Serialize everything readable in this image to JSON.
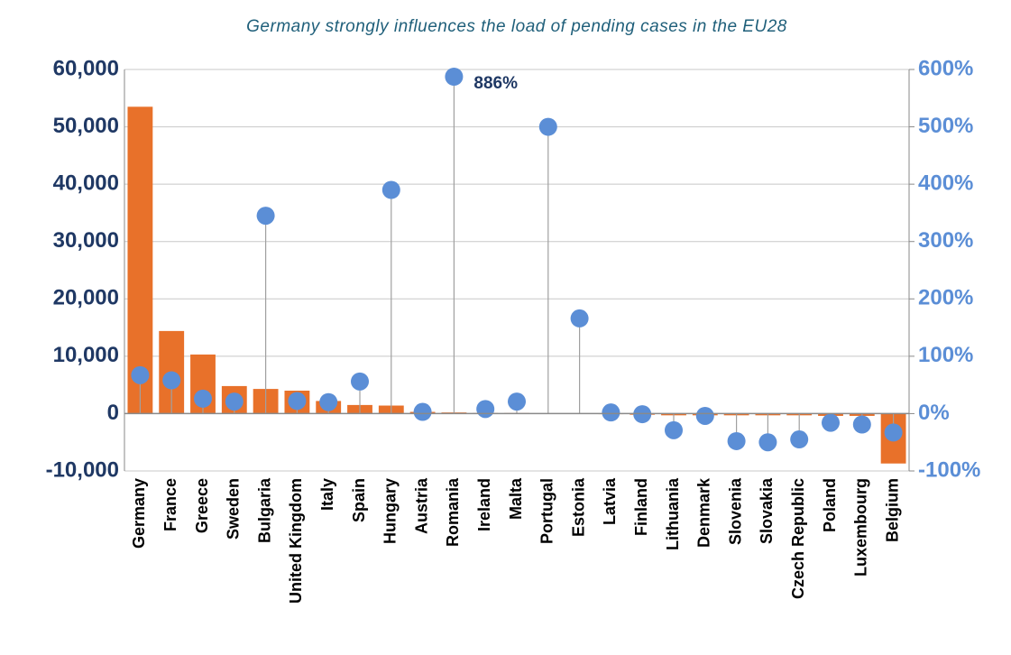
{
  "chart_data": {
    "type": "bar",
    "title": "Germany strongly influences the load of pending cases in the EU28",
    "categories": [
      "Germany",
      "France",
      "Greece",
      "Sweden",
      "Bulgaria",
      "United Kingdom",
      "Italy",
      "Spain",
      "Hungary",
      "Austria",
      "Romania",
      "Ireland",
      "Malta",
      "Portugal",
      "Estonia",
      "Latvia",
      "Finland",
      "Lithuania",
      "Denmark",
      "Slovenia",
      "Slovakia",
      "Czech Republic",
      "Poland",
      "Luxembourg",
      "Belgium"
    ],
    "series": [
      {
        "type": "bar",
        "color": "#e8712a",
        "values": [
          53500,
          14400,
          10300,
          4800,
          4300,
          4000,
          2200,
          1500,
          1400,
          300,
          200,
          100,
          100,
          0,
          0,
          -100,
          -200,
          -300,
          -300,
          -300,
          -300,
          -300,
          -400,
          -400,
          -8700
        ]
      },
      {
        "type": "lollipop",
        "axis": "y2",
        "color": "#5b8ed6",
        "values": [
          67,
          58,
          26,
          21,
          345,
          22,
          20,
          56,
          390,
          3,
          886,
          8,
          21,
          500,
          166,
          2,
          -1,
          -29,
          -4,
          -48,
          -50,
          -45,
          -16,
          -19,
          -33
        ],
        "value_labels": [
          null,
          null,
          null,
          null,
          null,
          null,
          null,
          null,
          null,
          null,
          "886%",
          null,
          null,
          null,
          null,
          null,
          null,
          null,
          null,
          null,
          null,
          null,
          null,
          null,
          null
        ]
      }
    ],
    "ylim": [
      -10000,
      60000
    ],
    "yticks": [
      {
        "value": -10000,
        "label": "-10,000"
      },
      0,
      {
        "value": 10000,
        "label": "10,000"
      },
      {
        "value": 20000,
        "label": "20,000"
      },
      {
        "value": 30000,
        "label": "30,000"
      },
      {
        "value": 40000,
        "label": "40,000"
      },
      {
        "value": 50000,
        "label": "50,000"
      },
      {
        "value": 60000,
        "label": "60,000"
      }
    ],
    "y2lim": [
      -100,
      600
    ],
    "y2ticks": [
      {
        "value": -100,
        "label": "-100%"
      },
      {
        "value": 0,
        "label": "0%"
      },
      {
        "value": 100,
        "label": "100%"
      },
      {
        "value": 200,
        "label": "200%"
      },
      {
        "value": 300,
        "label": "300%"
      },
      {
        "value": 400,
        "label": "400%"
      },
      {
        "value": 500,
        "label": "500%"
      },
      {
        "value": 600,
        "label": "600%"
      }
    ],
    "grid": true
  }
}
